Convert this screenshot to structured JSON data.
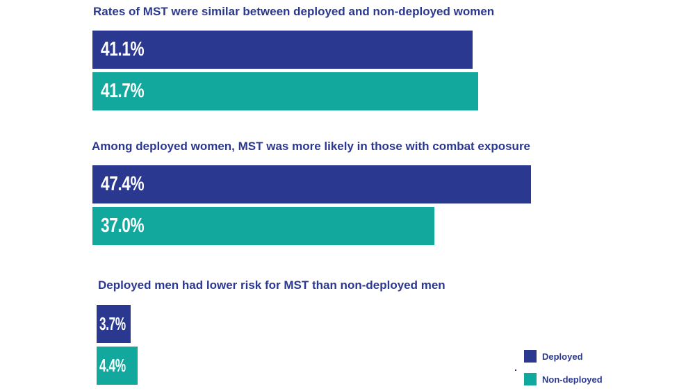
{
  "colors": {
    "deployed": "#2b3890",
    "non_deployed": "#13a89e",
    "title_text": "#2b3890"
  },
  "chart_data": [
    {
      "type": "bar",
      "orientation": "horizontal",
      "title": "Rates of MST were similar between deployed and non-deployed women",
      "unit": "%",
      "series": [
        {
          "name": "Deployed",
          "values": [
            41.1
          ],
          "label": "41.1%"
        },
        {
          "name": "Non-deployed",
          "values": [
            41.7
          ],
          "label": "41.7%"
        }
      ]
    },
    {
      "type": "bar",
      "orientation": "horizontal",
      "title": "Among deployed women, MST was more likely in those with combat exposure",
      "unit": "%",
      "series": [
        {
          "name": "Deployed",
          "values": [
            47.4
          ],
          "label": "47.4%"
        },
        {
          "name": "Non-deployed",
          "values": [
            37.0
          ],
          "label": "37.0%"
        }
      ]
    },
    {
      "type": "bar",
      "orientation": "horizontal",
      "title": "Deployed men had lower risk for MST than non-deployed men",
      "unit": "%",
      "series": [
        {
          "name": "Deployed",
          "values": [
            3.7
          ],
          "label": "3.7%"
        },
        {
          "name": "Non-deployed",
          "values": [
            4.4
          ],
          "label": "4.4%"
        }
      ]
    }
  ],
  "legend": {
    "placement": "bottom-right",
    "items": [
      {
        "label": "Deployed",
        "color": "#2b3890"
      },
      {
        "label": "Non-deployed",
        "color": "#13a89e"
      }
    ]
  }
}
